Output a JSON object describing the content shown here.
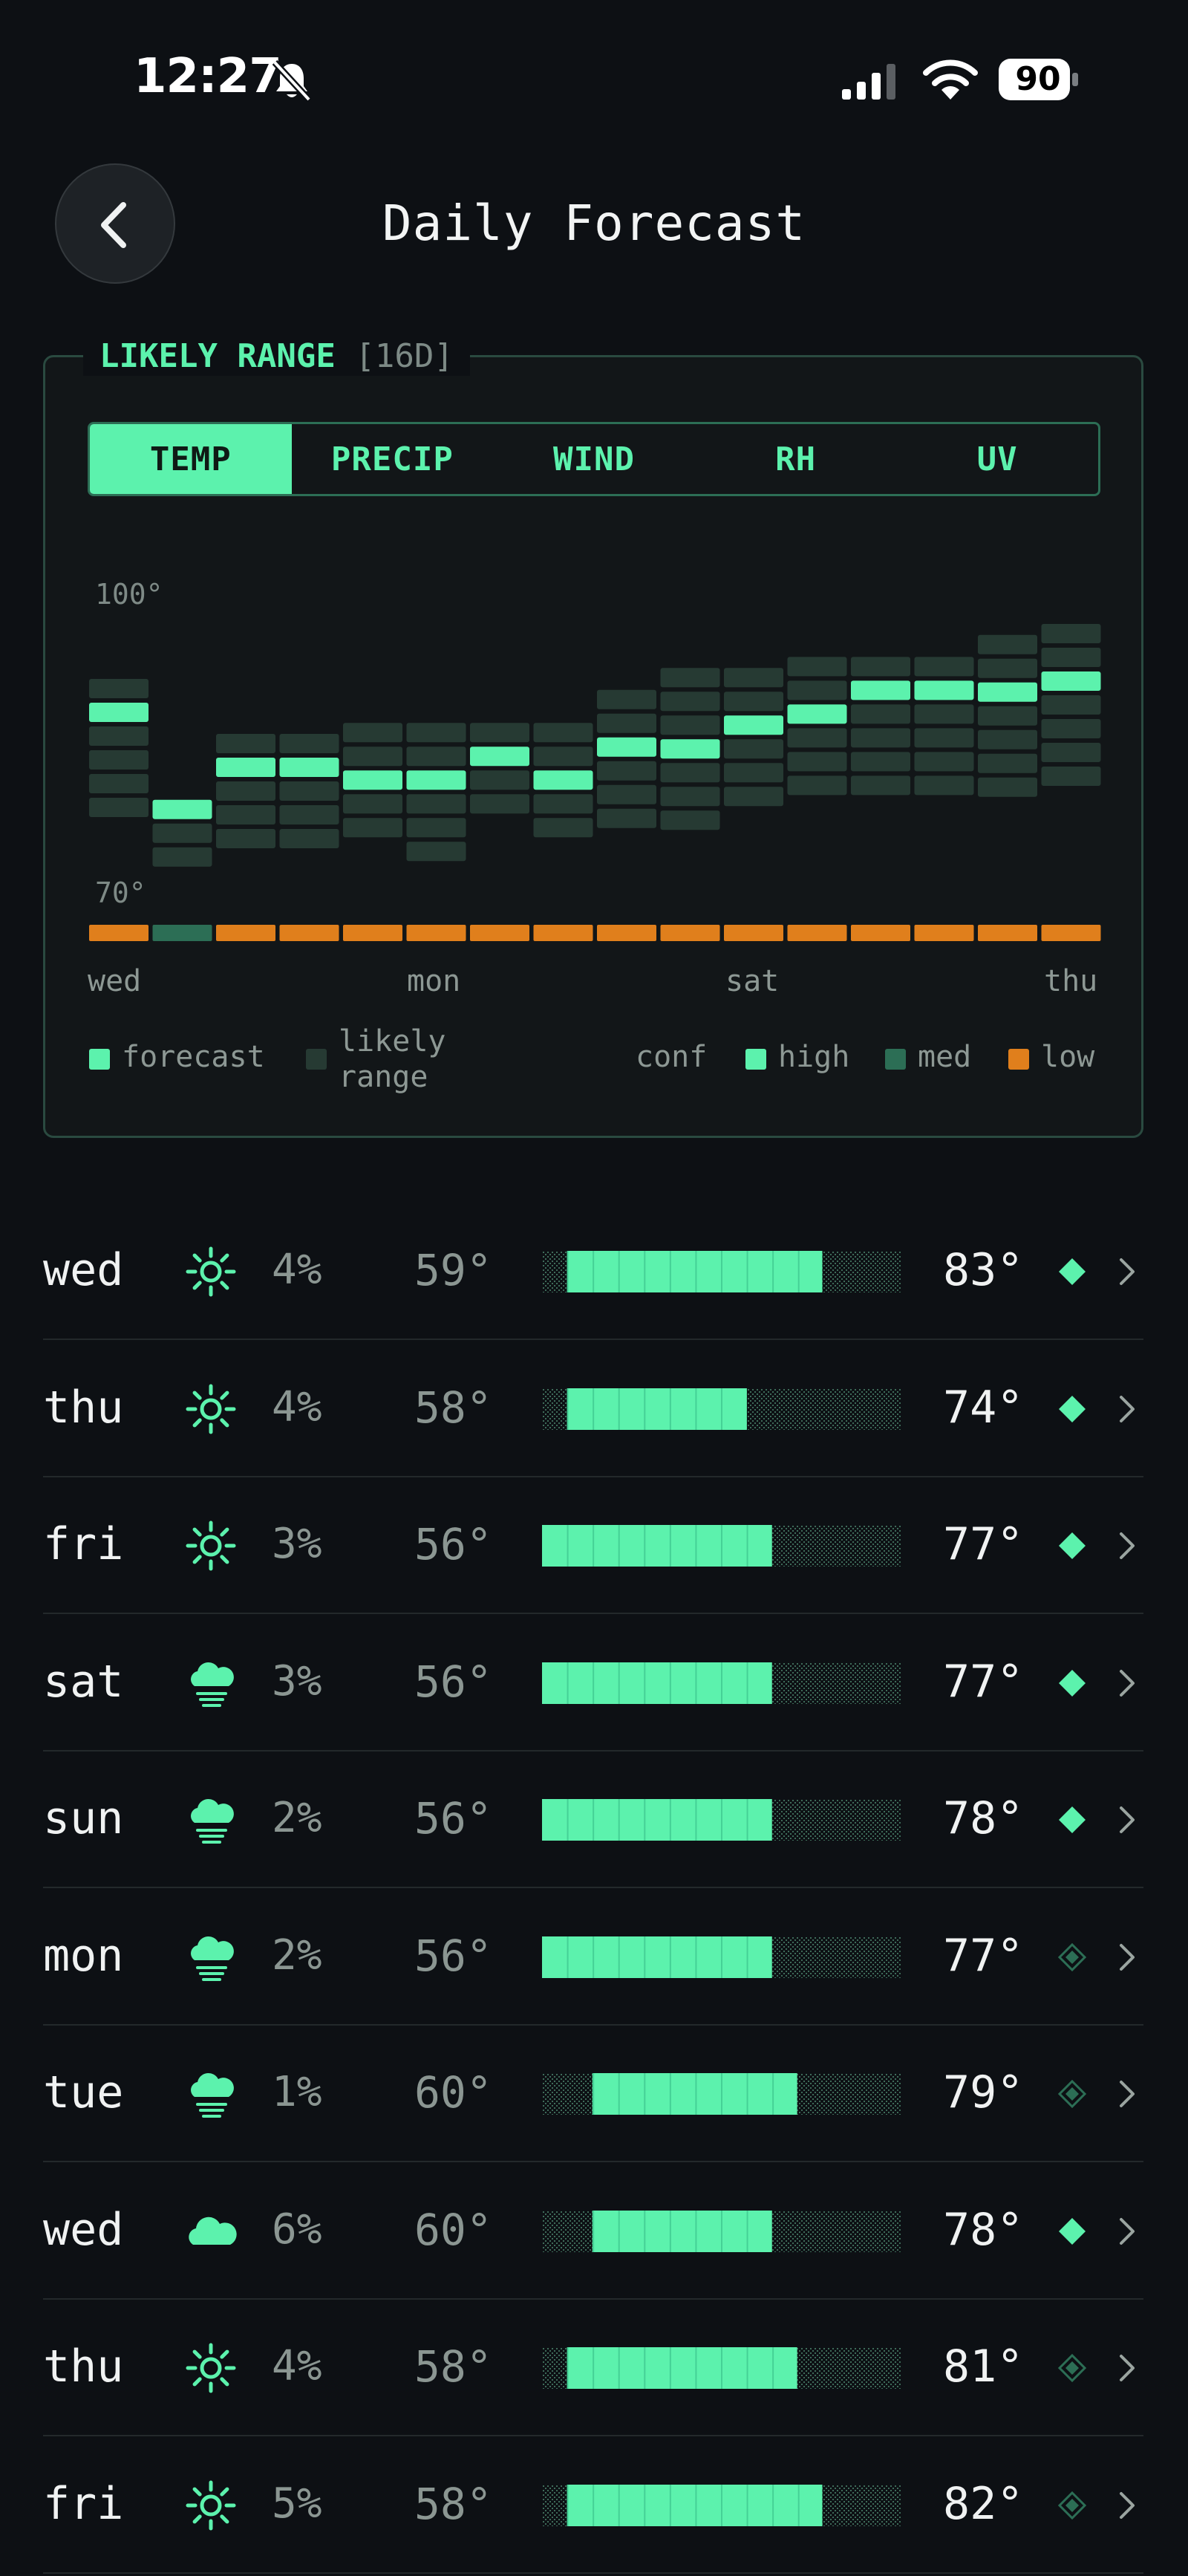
{
  "status_bar": {
    "time": "12:27",
    "battery": "90",
    "icons": [
      "bell-slash-icon",
      "cellular-signal-icon",
      "wifi-icon",
      "battery-icon"
    ]
  },
  "header": {
    "title": "Daily Forecast",
    "back_icon": "chevron-left-icon"
  },
  "panel": {
    "title": "LIKELY RANGE",
    "subtitle": "[16D]",
    "tabs": [
      "TEMP",
      "PRECIP",
      "WIND",
      "RH",
      "UV"
    ],
    "active_tab": "TEMP"
  },
  "chart_data": {
    "type": "heatmap",
    "title": "",
    "y_axis_labels": [
      "100°",
      "70°"
    ],
    "x_tick_labels": [
      "wed",
      "mon",
      "sat",
      "thu"
    ],
    "days": 16,
    "forecast": [
      85,
      78,
      80,
      80,
      80,
      80,
      82,
      80,
      83,
      83,
      84,
      86,
      87,
      87,
      87,
      89
    ],
    "range_low": [
      77,
      72,
      74,
      74,
      74,
      72,
      76,
      74,
      76,
      76,
      78,
      78,
      78,
      78,
      78,
      78
    ],
    "range_high": [
      88,
      77,
      83,
      83,
      84,
      84,
      84,
      84,
      87,
      89,
      89,
      90,
      90,
      90,
      92,
      93
    ],
    "confidence": [
      "low",
      "med",
      "low",
      "low",
      "low",
      "low",
      "low",
      "low",
      "low",
      "low",
      "low",
      "low",
      "low",
      "low",
      "low",
      "low"
    ],
    "legend": {
      "forecast": "forecast",
      "likely_range_1": "likely",
      "likely_range_2": "range",
      "conf_label": "conf",
      "high": "high",
      "med": "med",
      "low": "low"
    },
    "colors": {
      "forecast": "#5cf2ad",
      "range": "#263a33",
      "high": "#5cf2ad",
      "med": "#2c6e55",
      "low": "#e07f1c"
    }
  },
  "daily": [
    {
      "day": "wed",
      "icon": "sun-icon",
      "precip": "4%",
      "low": "59°",
      "high": "83°",
      "bar_start": 0.07,
      "bar_end": 0.78,
      "confidence": "high"
    },
    {
      "day": "thu",
      "icon": "sun-icon",
      "precip": "4%",
      "low": "58°",
      "high": "74°",
      "bar_start": 0.07,
      "bar_end": 0.57,
      "confidence": "high"
    },
    {
      "day": "fri",
      "icon": "sun-icon",
      "precip": "3%",
      "low": "56°",
      "high": "77°",
      "bar_start": 0.0,
      "bar_end": 0.64,
      "confidence": "high"
    },
    {
      "day": "sat",
      "icon": "cloud-fog-icon",
      "precip": "3%",
      "low": "56°",
      "high": "77°",
      "bar_start": 0.0,
      "bar_end": 0.64,
      "confidence": "high"
    },
    {
      "day": "sun",
      "icon": "cloud-fog-icon",
      "precip": "2%",
      "low": "56°",
      "high": "78°",
      "bar_start": 0.0,
      "bar_end": 0.64,
      "confidence": "high"
    },
    {
      "day": "mon",
      "icon": "cloud-fog-icon",
      "precip": "2%",
      "low": "56°",
      "high": "77°",
      "bar_start": 0.0,
      "bar_end": 0.64,
      "confidence": "med"
    },
    {
      "day": "tue",
      "icon": "cloud-fog-icon",
      "precip": "1%",
      "low": "60°",
      "high": "79°",
      "bar_start": 0.14,
      "bar_end": 0.71,
      "confidence": "med"
    },
    {
      "day": "wed",
      "icon": "cloud-icon",
      "precip": "6%",
      "low": "60°",
      "high": "78°",
      "bar_start": 0.14,
      "bar_end": 0.64,
      "confidence": "high"
    },
    {
      "day": "thu",
      "icon": "sun-icon",
      "precip": "4%",
      "low": "58°",
      "high": "81°",
      "bar_start": 0.07,
      "bar_end": 0.71,
      "confidence": "med"
    },
    {
      "day": "fri",
      "icon": "sun-icon",
      "precip": "5%",
      "low": "58°",
      "high": "82°",
      "bar_start": 0.07,
      "bar_end": 0.78,
      "confidence": "med"
    }
  ]
}
